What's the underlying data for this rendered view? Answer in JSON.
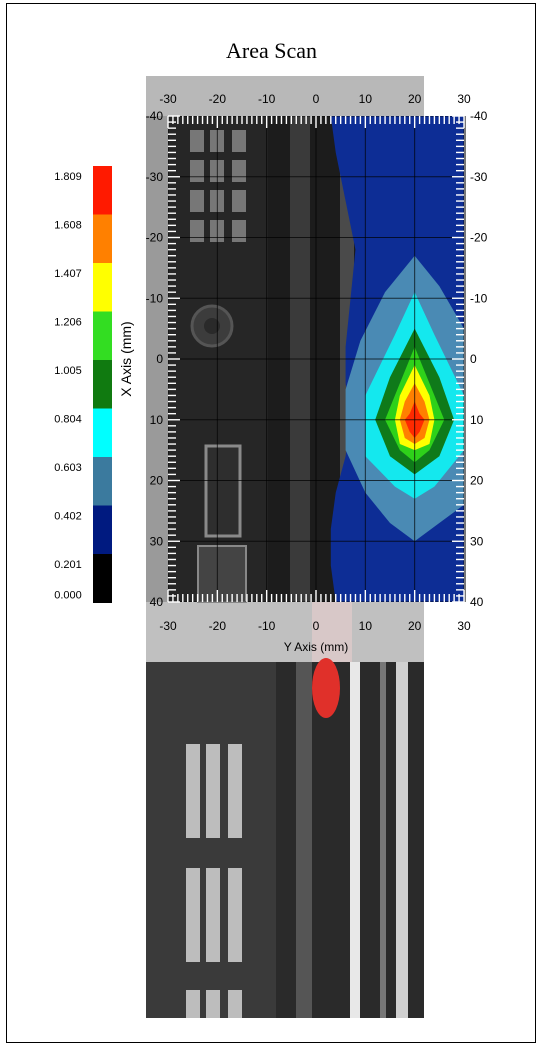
{
  "title": "Area Scan",
  "chart_data": {
    "type": "heatmap",
    "title": "Area Scan",
    "xlabel": "Y Axis (mm)",
    "ylabel": "X Axis (mm)",
    "x_ticks": [
      -30,
      -20,
      -10,
      0,
      10,
      20,
      30
    ],
    "y_ticks": [
      -40,
      -30,
      -20,
      -10,
      0,
      10,
      20,
      30,
      40
    ],
    "xlim": [
      -30,
      30
    ],
    "ylim": [
      -40,
      40
    ],
    "y_axis_direction": "down",
    "grid": true,
    "legend_position": "left",
    "colorbar": {
      "levels": [
        "1.809",
        "1.608",
        "1.407",
        "1.206",
        "1.005",
        "0.804",
        "0.603",
        "0.402",
        "0.201",
        "0.000"
      ],
      "colors": [
        "#ff1a00",
        "#ff8000",
        "#ffff00",
        "#33dd22",
        "#107a10",
        "#00ffff",
        "#3b7a9e",
        "#001a80",
        "#000000"
      ]
    },
    "peak": {
      "y": 20,
      "x": 10,
      "value": "1.809"
    },
    "contours": [
      {
        "level": "0.402",
        "color": "#0d2d95",
        "points": [
          [
            3,
            -40
          ],
          [
            30,
            -40
          ],
          [
            30,
            40
          ],
          [
            4,
            40
          ],
          [
            3,
            34
          ],
          [
            3,
            28
          ],
          [
            4,
            22
          ],
          [
            6,
            16
          ],
          [
            7,
            10
          ],
          [
            6,
            4
          ],
          [
            6,
            -2
          ],
          [
            7,
            -10
          ],
          [
            8,
            -18
          ],
          [
            6,
            -26
          ],
          [
            4,
            -34
          ]
        ]
      },
      {
        "level": "0.603",
        "color": "#4a8ab4",
        "points": [
          [
            20,
            -17
          ],
          [
            25,
            -12
          ],
          [
            30,
            -5
          ],
          [
            30,
            24
          ],
          [
            25,
            27
          ],
          [
            20,
            30
          ],
          [
            15,
            27
          ],
          [
            10,
            22
          ],
          [
            6,
            15
          ],
          [
            6,
            5
          ],
          [
            9,
            -3
          ],
          [
            14,
            -11
          ]
        ]
      },
      {
        "level": "0.804",
        "color": "#14e8ee",
        "points": [
          [
            20,
            -11
          ],
          [
            24,
            -4
          ],
          [
            30,
            6
          ],
          [
            30,
            15
          ],
          [
            24,
            21
          ],
          [
            20,
            23
          ],
          [
            16,
            21
          ],
          [
            10,
            16
          ],
          [
            10,
            6
          ],
          [
            16,
            -4
          ]
        ]
      },
      {
        "level": "1.005",
        "color": "#0f7a1a",
        "points": [
          [
            20,
            -5
          ],
          [
            25,
            3
          ],
          [
            28,
            10
          ],
          [
            25,
            16
          ],
          [
            20,
            19
          ],
          [
            15,
            16
          ],
          [
            12,
            10
          ],
          [
            15,
            3
          ]
        ]
      },
      {
        "level": "1.206",
        "color": "#2ed11a",
        "points": [
          [
            20,
            -2
          ],
          [
            23,
            4
          ],
          [
            26,
            10
          ],
          [
            23,
            15
          ],
          [
            20,
            17
          ],
          [
            17,
            15
          ],
          [
            14,
            10
          ],
          [
            17,
            4
          ]
        ]
      },
      {
        "level": "1.407",
        "color": "#ffff00",
        "points": [
          [
            20,
            1
          ],
          [
            23,
            6
          ],
          [
            24,
            10
          ],
          [
            23,
            14
          ],
          [
            20,
            15
          ],
          [
            17,
            14
          ],
          [
            16,
            10
          ],
          [
            17,
            6
          ]
        ]
      },
      {
        "level": "1.608",
        "color": "#ff8000",
        "points": [
          [
            20,
            4
          ],
          [
            22,
            7
          ],
          [
            23,
            10
          ],
          [
            22,
            13
          ],
          [
            20,
            14
          ],
          [
            18,
            13
          ],
          [
            17,
            10
          ],
          [
            18,
            7
          ]
        ]
      },
      {
        "level": "1.809",
        "color": "#ff2a00",
        "points": [
          [
            20,
            7
          ],
          [
            21,
            9
          ],
          [
            22,
            10
          ],
          [
            21,
            12
          ],
          [
            20,
            13
          ],
          [
            19,
            12
          ],
          [
            18,
            10
          ],
          [
            19,
            9
          ]
        ]
      }
    ]
  }
}
